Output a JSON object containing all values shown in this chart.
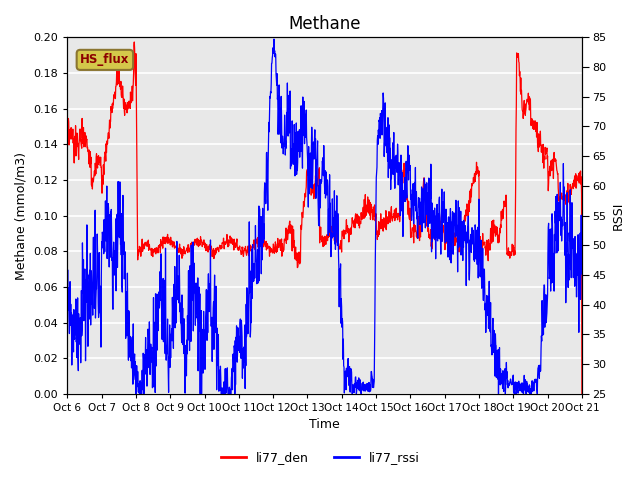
{
  "title": "Methane",
  "ylabel_left": "Methane (mmol/m3)",
  "ylabel_right": "RSSI",
  "xlabel": "Time",
  "ylim_left": [
    0.0,
    0.2
  ],
  "ylim_right": [
    25,
    85
  ],
  "yticks_left": [
    0.0,
    0.02,
    0.04,
    0.06,
    0.08,
    0.1,
    0.12,
    0.14,
    0.16,
    0.18,
    0.2
  ],
  "yticks_right": [
    25,
    30,
    35,
    40,
    45,
    50,
    55,
    60,
    65,
    70,
    75,
    80,
    85
  ],
  "xtick_labels": [
    "Oct 6",
    "Oct 7",
    "Oct 8",
    "Oct 9",
    "Oct 10",
    "Oct 11",
    "Oct 12",
    "Oct 13",
    "Oct 14",
    "Oct 15",
    "Oct 16",
    "Oct 17",
    "Oct 18",
    "Oct 19",
    "Oct 20",
    "Oct 21"
  ],
  "legend_labels": [
    "li77_den",
    "li77_rssi"
  ],
  "legend_colors": [
    "red",
    "blue"
  ],
  "box_label": "HS_flux",
  "box_facecolor": "#d4c84a",
  "box_edgecolor": "#8b7530",
  "line_color_red": "red",
  "line_color_blue": "blue",
  "bg_color": "#e8e8e8",
  "grid_color": "white",
  "title_fontsize": 12
}
